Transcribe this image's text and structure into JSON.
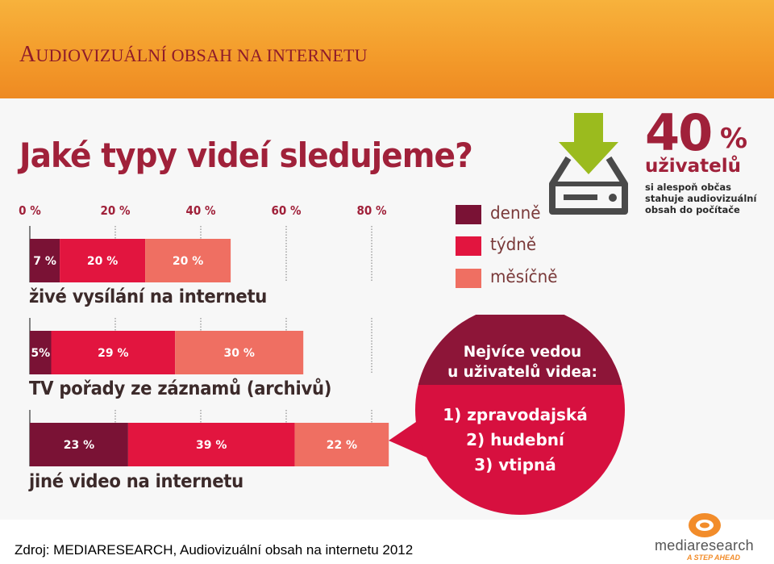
{
  "header": {
    "title_first": "A",
    "title_rest": "UDIOVIZUÁLNÍ OBSAH NA INTERNETU"
  },
  "colors": {
    "header_orange": "#f39a2a",
    "daily": "#7a1235",
    "weekly": "#e2153f",
    "monthly": "#ef6f62",
    "accent": "#a0213a",
    "bubble": "#d7103f",
    "bubble_dark": "#8d1538",
    "download_arrow": "#9bbb1e"
  },
  "chart_data": {
    "type": "bar",
    "orientation": "horizontal",
    "stacked": true,
    "title": "Jaké typy videí sledujeme?",
    "categories": [
      "živé vysílání na internetu",
      "TV pořady ze záznamů (archivů)",
      "jiné video na internetu"
    ],
    "series": [
      {
        "name": "denně",
        "values": [
          7,
          5,
          23
        ],
        "labels": [
          "7 %",
          "5%",
          "23 %"
        ]
      },
      {
        "name": "týdně",
        "values": [
          20,
          29,
          39
        ],
        "labels": [
          "20 %",
          "29 %",
          "39 %"
        ]
      },
      {
        "name": "měsíčně",
        "values": [
          20,
          30,
          22
        ],
        "labels": [
          "20 %",
          "30 %",
          "22 %"
        ]
      }
    ],
    "xticks": [
      0,
      20,
      40,
      60,
      80
    ],
    "xtick_labels": [
      "0 %",
      "20 %",
      "40 %",
      "60 %",
      "80 %"
    ],
    "xlim": [
      0,
      85
    ],
    "legend_position": "top-right",
    "grid": "dotted vertical"
  },
  "stat": {
    "number": "40",
    "percent_sign": "%",
    "unit": "uživatelů",
    "description": "si alespoň občas stahuje audiovizuální obsah do počítače",
    "icon": "download-drive-icon"
  },
  "bubble": {
    "heading_line1": "Nejvíce vedou",
    "heading_line2": "u uživatelů videa:",
    "items": [
      "1) zpravodajská",
      "2) hudební",
      "3) vtipná"
    ]
  },
  "source": "Zdroj: MEDIARESEARCH, Audiovizuální obsah na internetu 2012",
  "logo": {
    "word": "mediaresearch",
    "tagline": "A STEP AHEAD",
    "icon": "mediaresearch-logo-icon"
  }
}
